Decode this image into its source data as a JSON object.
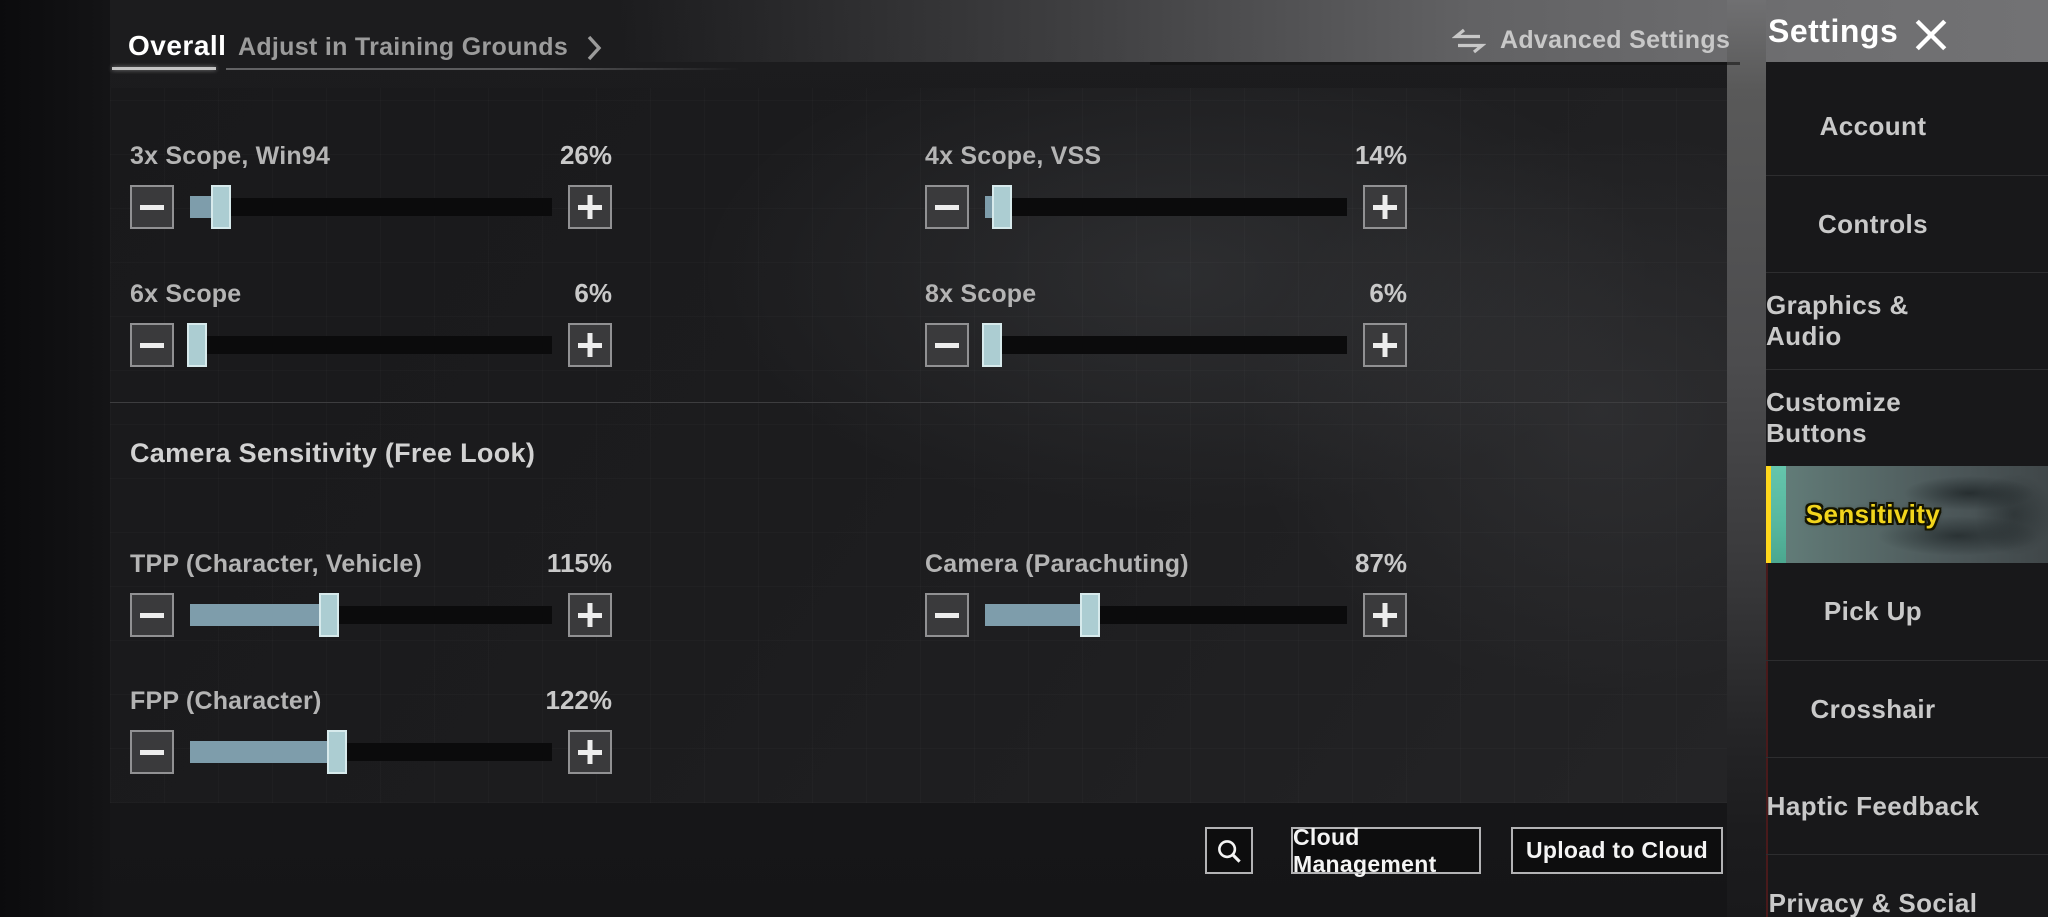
{
  "header": {
    "tab_overall": "Overall",
    "tab_training": "Adjust in Training Grounds",
    "advanced_settings_label": "Advanced Settings",
    "settings_title": "Settings"
  },
  "panel": {
    "slider_max_percent": 300,
    "scope_sliders": [
      {
        "label": "3x Scope, Win94",
        "value": "26%"
      },
      {
        "label": "4x Scope, VSS",
        "value": "14%"
      },
      {
        "label": "6x Scope",
        "value": "6%"
      },
      {
        "label": "8x Scope",
        "value": "6%"
      }
    ],
    "camera_heading": "Camera Sensitivity (Free Look)",
    "camera_sliders": [
      {
        "label": "TPP (Character, Vehicle)",
        "value": "115%"
      },
      {
        "label": "Camera (Parachuting)",
        "value": "87%"
      },
      {
        "label": "FPP (Character)",
        "value": "122%"
      }
    ]
  },
  "footer": {
    "cloud_management_label": "Cloud Management",
    "upload_label": "Upload to Cloud"
  },
  "sidebar": {
    "items": [
      {
        "label": "Account",
        "selected": false
      },
      {
        "label": "Controls",
        "selected": false
      },
      {
        "label": "Graphics & Audio",
        "selected": false
      },
      {
        "label": "Customize Buttons",
        "selected": false
      },
      {
        "label": "Sensitivity",
        "selected": true
      },
      {
        "label": "Pick Up",
        "selected": false
      },
      {
        "label": "Crosshair",
        "selected": false
      },
      {
        "label": "Haptic Feedback",
        "selected": false
      },
      {
        "label": "Privacy & Social",
        "selected": false
      }
    ]
  },
  "colors": {
    "slider_fill": "#7e9dab",
    "slider_handle": "#accdd2",
    "selected_item_text": "#f2d51c",
    "selected_item_stripe": "#ffd71c",
    "selected_item_band": "#57bda3"
  }
}
